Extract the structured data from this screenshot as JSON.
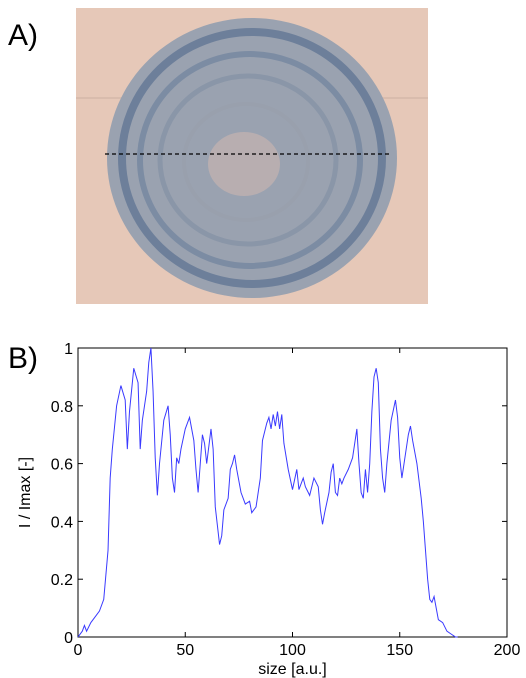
{
  "panels": [
    "A)",
    "B)"
  ],
  "chart_data": {
    "type": "line",
    "x_label": "size [a.u.]",
    "y_label": "I / Imax [-]",
    "xlim": [
      0,
      200
    ],
    "xticks": [
      0,
      50,
      100,
      150,
      200
    ],
    "ylim": [
      0,
      1
    ],
    "yticks": [
      0,
      0.2,
      0.4,
      0.6,
      0.8,
      1
    ],
    "grid": false,
    "x": [
      0,
      2,
      3,
      4,
      6,
      8,
      10,
      12,
      14,
      15,
      16,
      18,
      20,
      22,
      23,
      24,
      26,
      28,
      29,
      30,
      32,
      33,
      34,
      35,
      36,
      37,
      38,
      40,
      42,
      43,
      44,
      45,
      46,
      47,
      48,
      50,
      52,
      54,
      55,
      56,
      57,
      58,
      59,
      60,
      62,
      63,
      64,
      66,
      67,
      68,
      70,
      71,
      72,
      73,
      74,
      76,
      78,
      80,
      81,
      83,
      85,
      86,
      88,
      89,
      90,
      91,
      92,
      93,
      94,
      95,
      96,
      98,
      100,
      102,
      103,
      105,
      106,
      108,
      110,
      112,
      113,
      114,
      115,
      117,
      118,
      119,
      120,
      121,
      122,
      123,
      124,
      126,
      128,
      130,
      131,
      132,
      133,
      134,
      135,
      136,
      137,
      138,
      139,
      140,
      141,
      142,
      143,
      144,
      146,
      148,
      149,
      150,
      151,
      152,
      154,
      155,
      156,
      158,
      160,
      161,
      162,
      163,
      164,
      165,
      166,
      167,
      168,
      170,
      172,
      174,
      176,
      177
    ],
    "series": [
      {
        "color": "#3a3aff",
        "values": [
          0,
          0.02,
          0.04,
          0.02,
          0.05,
          0.07,
          0.09,
          0.13,
          0.3,
          0.55,
          0.65,
          0.8,
          0.87,
          0.82,
          0.65,
          0.78,
          0.93,
          0.88,
          0.65,
          0.75,
          0.85,
          0.95,
          1,
          0.85,
          0.62,
          0.49,
          0.6,
          0.75,
          0.8,
          0.7,
          0.55,
          0.5,
          0.62,
          0.6,
          0.65,
          0.72,
          0.76,
          0.68,
          0.58,
          0.5,
          0.6,
          0.7,
          0.67,
          0.6,
          0.72,
          0.65,
          0.45,
          0.32,
          0.35,
          0.44,
          0.48,
          0.58,
          0.6,
          0.63,
          0.58,
          0.5,
          0.46,
          0.47,
          0.43,
          0.45,
          0.55,
          0.68,
          0.74,
          0.76,
          0.72,
          0.77,
          0.73,
          0.78,
          0.72,
          0.77,
          0.67,
          0.58,
          0.51,
          0.58,
          0.51,
          0.55,
          0.52,
          0.49,
          0.55,
          0.52,
          0.44,
          0.39,
          0.43,
          0.5,
          0.57,
          0.6,
          0.5,
          0.49,
          0.55,
          0.53,
          0.55,
          0.58,
          0.62,
          0.72,
          0.6,
          0.5,
          0.48,
          0.58,
          0.5,
          0.6,
          0.78,
          0.9,
          0.93,
          0.88,
          0.65,
          0.55,
          0.5,
          0.6,
          0.75,
          0.82,
          0.76,
          0.62,
          0.55,
          0.6,
          0.7,
          0.73,
          0.68,
          0.6,
          0.48,
          0.4,
          0.3,
          0.2,
          0.13,
          0.12,
          0.14,
          0.1,
          0.06,
          0.05,
          0.02,
          0.01,
          0,
          0
        ]
      }
    ]
  }
}
